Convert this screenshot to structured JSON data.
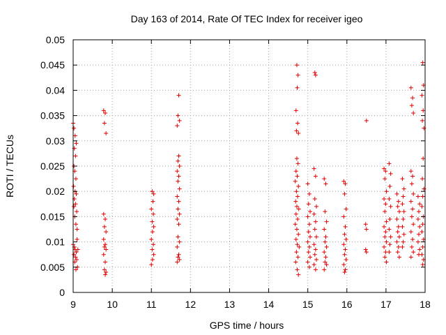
{
  "chart_data": {
    "type": "scatter",
    "title": "Day 163 of 2014, Rate Of TEC Index for receiver igeo",
    "xlabel": "GPS time / hours",
    "ylabel": "ROTI / TECUs",
    "xlim": [
      9,
      18
    ],
    "ylim": [
      0,
      0.05
    ],
    "xticks": [
      9,
      10,
      11,
      12,
      13,
      14,
      15,
      16,
      17,
      18
    ],
    "xtick_labels": [
      "9",
      "10",
      "11",
      "12",
      "13",
      "14",
      "15",
      "16",
      "17",
      "18"
    ],
    "yticks": [
      0,
      0.005,
      0.01,
      0.015,
      0.02,
      0.025,
      0.03,
      0.035,
      0.04,
      0.045,
      0.05
    ],
    "ytick_labels": [
      "0",
      "0.005",
      "0.01",
      "0.015",
      "0.02",
      "0.025",
      "0.03",
      "0.035",
      "0.04",
      "0.045",
      "0.05"
    ],
    "grid": true,
    "marker": "+",
    "color": "#e00000",
    "series": [
      {
        "name": "ROTI",
        "points": [
          [
            9.0,
            0.0335
          ],
          [
            9.02,
            0.0325
          ],
          [
            9.05,
            0.031
          ],
          [
            9.08,
            0.0295
          ],
          [
            9.03,
            0.0285
          ],
          [
            9.06,
            0.027
          ],
          [
            9.02,
            0.025
          ],
          [
            9.04,
            0.024
          ],
          [
            9.07,
            0.0225
          ],
          [
            9.01,
            0.021
          ],
          [
            9.05,
            0.02
          ],
          [
            9.08,
            0.0195
          ],
          [
            9.03,
            0.0185
          ],
          [
            9.06,
            0.0175
          ],
          [
            9.02,
            0.017
          ],
          [
            9.09,
            0.016
          ],
          [
            9.04,
            0.015
          ],
          [
            9.07,
            0.0135
          ],
          [
            9.1,
            0.0125
          ],
          [
            9.0,
            0.0095
          ],
          [
            9.03,
            0.009
          ],
          [
            9.05,
            0.0085
          ],
          [
            9.08,
            0.008
          ],
          [
            9.02,
            0.0075
          ],
          [
            9.06,
            0.007
          ],
          [
            9.09,
            0.0065
          ],
          [
            9.04,
            0.006
          ],
          [
            9.11,
            0.005
          ],
          [
            9.07,
            0.0045
          ],
          [
            9.12,
            0.0085
          ],
          [
            9.1,
            0.0105
          ],
          [
            9.78,
            0.036
          ],
          [
            9.82,
            0.0355
          ],
          [
            9.8,
            0.0335
          ],
          [
            9.84,
            0.0315
          ],
          [
            9.78,
            0.0155
          ],
          [
            9.82,
            0.0145
          ],
          [
            9.8,
            0.013
          ],
          [
            9.84,
            0.012
          ],
          [
            9.78,
            0.0105
          ],
          [
            9.82,
            0.0095
          ],
          [
            9.8,
            0.009
          ],
          [
            9.84,
            0.0085
          ],
          [
            9.78,
            0.0075
          ],
          [
            9.82,
            0.006
          ],
          [
            9.8,
            0.0045
          ],
          [
            9.84,
            0.004
          ],
          [
            9.82,
            0.0035
          ],
          [
            11.02,
            0.02
          ],
          [
            11.06,
            0.0195
          ],
          [
            11.04,
            0.018
          ],
          [
            11.0,
            0.0165
          ],
          [
            11.05,
            0.0155
          ],
          [
            11.02,
            0.014
          ],
          [
            11.06,
            0.013
          ],
          [
            11.03,
            0.012
          ],
          [
            11.0,
            0.0105
          ],
          [
            11.05,
            0.0095
          ],
          [
            11.02,
            0.0085
          ],
          [
            11.06,
            0.0075
          ],
          [
            11.03,
            0.0065
          ],
          [
            11.0,
            0.0055
          ],
          [
            11.7,
            0.039
          ],
          [
            11.68,
            0.035
          ],
          [
            11.72,
            0.034
          ],
          [
            11.66,
            0.033
          ],
          [
            11.7,
            0.027
          ],
          [
            11.68,
            0.026
          ],
          [
            11.72,
            0.025
          ],
          [
            11.66,
            0.024
          ],
          [
            11.7,
            0.023
          ],
          [
            11.68,
            0.022
          ],
          [
            11.72,
            0.0205
          ],
          [
            11.66,
            0.019
          ],
          [
            11.7,
            0.018
          ],
          [
            11.68,
            0.0165
          ],
          [
            11.72,
            0.0155
          ],
          [
            11.66,
            0.0145
          ],
          [
            11.7,
            0.0135
          ],
          [
            11.68,
            0.011
          ],
          [
            11.72,
            0.01
          ],
          [
            11.66,
            0.009
          ],
          [
            11.7,
            0.0075
          ],
          [
            11.68,
            0.007
          ],
          [
            11.72,
            0.0065
          ],
          [
            11.66,
            0.006
          ],
          [
            14.72,
            0.045
          ],
          [
            14.75,
            0.043
          ],
          [
            14.73,
            0.0405
          ],
          [
            14.7,
            0.036
          ],
          [
            14.74,
            0.0335
          ],
          [
            14.71,
            0.032
          ],
          [
            14.76,
            0.0315
          ],
          [
            14.72,
            0.0265
          ],
          [
            14.75,
            0.0255
          ],
          [
            14.7,
            0.024
          ],
          [
            14.73,
            0.023
          ],
          [
            14.68,
            0.022
          ],
          [
            14.76,
            0.021
          ],
          [
            14.71,
            0.02
          ],
          [
            14.74,
            0.019
          ],
          [
            14.69,
            0.018
          ],
          [
            14.72,
            0.017
          ],
          [
            14.77,
            0.0165
          ],
          [
            14.7,
            0.0155
          ],
          [
            14.74,
            0.0145
          ],
          [
            14.68,
            0.0135
          ],
          [
            14.72,
            0.0125
          ],
          [
            14.76,
            0.0115
          ],
          [
            14.7,
            0.0105
          ],
          [
            14.73,
            0.0095
          ],
          [
            14.78,
            0.009
          ],
          [
            14.71,
            0.008
          ],
          [
            14.75,
            0.007
          ],
          [
            14.69,
            0.006
          ],
          [
            14.73,
            0.0045
          ],
          [
            14.76,
            0.0035
          ],
          [
            15.0,
            0.0215
          ],
          [
            15.04,
            0.0195
          ],
          [
            15.02,
            0.0175
          ],
          [
            15.06,
            0.016
          ],
          [
            15.0,
            0.015
          ],
          [
            15.04,
            0.0135
          ],
          [
            15.02,
            0.012
          ],
          [
            15.06,
            0.011
          ],
          [
            15.0,
            0.01
          ],
          [
            15.04,
            0.009
          ],
          [
            15.02,
            0.008
          ],
          [
            15.06,
            0.007
          ],
          [
            15.0,
            0.006
          ],
          [
            15.04,
            0.005
          ],
          [
            15.18,
            0.0435
          ],
          [
            15.2,
            0.043
          ],
          [
            15.16,
            0.0245
          ],
          [
            15.2,
            0.023
          ],
          [
            15.18,
            0.0185
          ],
          [
            15.22,
            0.017
          ],
          [
            15.16,
            0.0155
          ],
          [
            15.2,
            0.014
          ],
          [
            15.18,
            0.0125
          ],
          [
            15.22,
            0.011
          ],
          [
            15.16,
            0.0095
          ],
          [
            15.2,
            0.0085
          ],
          [
            15.18,
            0.0075
          ],
          [
            15.22,
            0.0065
          ],
          [
            15.16,
            0.0055
          ],
          [
            15.2,
            0.0045
          ],
          [
            15.42,
            0.0225
          ],
          [
            15.46,
            0.0215
          ],
          [
            15.44,
            0.016
          ],
          [
            15.48,
            0.014
          ],
          [
            15.42,
            0.0125
          ],
          [
            15.46,
            0.011
          ],
          [
            15.44,
            0.01
          ],
          [
            15.48,
            0.009
          ],
          [
            15.42,
            0.008
          ],
          [
            15.46,
            0.007
          ],
          [
            15.44,
            0.006
          ],
          [
            15.48,
            0.0055
          ],
          [
            15.42,
            0.0045
          ],
          [
            15.92,
            0.022
          ],
          [
            15.96,
            0.0215
          ],
          [
            15.94,
            0.0195
          ],
          [
            15.98,
            0.0165
          ],
          [
            15.92,
            0.015
          ],
          [
            15.96,
            0.013
          ],
          [
            15.94,
            0.0115
          ],
          [
            15.98,
            0.0105
          ],
          [
            15.92,
            0.0095
          ],
          [
            15.96,
            0.0085
          ],
          [
            15.94,
            0.0075
          ],
          [
            15.98,
            0.0065
          ],
          [
            15.92,
            0.0055
          ],
          [
            15.96,
            0.0045
          ],
          [
            15.94,
            0.004
          ],
          [
            16.5,
            0.034
          ],
          [
            16.48,
            0.0135
          ],
          [
            16.5,
            0.0125
          ],
          [
            16.48,
            0.0085
          ],
          [
            16.5,
            0.008
          ],
          [
            16.95,
            0.0245
          ],
          [
            16.99,
            0.024
          ],
          [
            16.97,
            0.0225
          ],
          [
            17.01,
            0.02
          ],
          [
            16.95,
            0.0185
          ],
          [
            16.99,
            0.0175
          ],
          [
            16.97,
            0.016
          ],
          [
            17.01,
            0.014
          ],
          [
            16.95,
            0.013
          ],
          [
            16.99,
            0.012
          ],
          [
            16.97,
            0.011
          ],
          [
            17.01,
            0.01
          ],
          [
            16.95,
            0.009
          ],
          [
            16.99,
            0.008
          ],
          [
            16.97,
            0.007
          ],
          [
            17.01,
            0.006
          ],
          [
            17.08,
            0.0255
          ],
          [
            17.12,
            0.0235
          ],
          [
            17.1,
            0.021
          ],
          [
            17.08,
            0.0185
          ],
          [
            17.12,
            0.017
          ],
          [
            17.1,
            0.0145
          ],
          [
            17.08,
            0.0125
          ],
          [
            17.12,
            0.011
          ],
          [
            17.1,
            0.0095
          ],
          [
            17.08,
            0.008
          ],
          [
            17.28,
            0.0195
          ],
          [
            17.32,
            0.018
          ],
          [
            17.3,
            0.017
          ],
          [
            17.34,
            0.016
          ],
          [
            17.28,
            0.0145
          ],
          [
            17.32,
            0.013
          ],
          [
            17.3,
            0.012
          ],
          [
            17.34,
            0.011
          ],
          [
            17.28,
            0.01
          ],
          [
            17.32,
            0.009
          ],
          [
            17.3,
            0.008
          ],
          [
            17.34,
            0.007
          ],
          [
            17.42,
            0.0225
          ],
          [
            17.46,
            0.0205
          ],
          [
            17.44,
            0.019
          ],
          [
            17.42,
            0.0175
          ],
          [
            17.46,
            0.016
          ],
          [
            17.44,
            0.0145
          ],
          [
            17.42,
            0.013
          ],
          [
            17.46,
            0.0115
          ],
          [
            17.44,
            0.01
          ],
          [
            17.42,
            0.009
          ],
          [
            17.64,
            0.0405
          ],
          [
            17.68,
            0.0385
          ],
          [
            17.66,
            0.037
          ],
          [
            17.7,
            0.0355
          ],
          [
            17.64,
            0.024
          ],
          [
            17.68,
            0.023
          ],
          [
            17.66,
            0.0215
          ],
          [
            17.7,
            0.0195
          ],
          [
            17.64,
            0.018
          ],
          [
            17.68,
            0.0165
          ],
          [
            17.66,
            0.015
          ],
          [
            17.7,
            0.0135
          ],
          [
            17.64,
            0.012
          ],
          [
            17.68,
            0.0105
          ],
          [
            17.66,
            0.009
          ],
          [
            17.7,
            0.008
          ],
          [
            17.64,
            0.007
          ],
          [
            17.82,
            0.019
          ],
          [
            17.86,
            0.0175
          ],
          [
            17.84,
            0.016
          ],
          [
            17.82,
            0.0145
          ],
          [
            17.86,
            0.013
          ],
          [
            17.84,
            0.0115
          ],
          [
            17.82,
            0.01
          ],
          [
            17.86,
            0.0085
          ],
          [
            17.84,
            0.0075
          ],
          [
            17.94,
            0.0455
          ],
          [
            17.96,
            0.041
          ],
          [
            17.92,
            0.039
          ],
          [
            17.95,
            0.036
          ],
          [
            17.93,
            0.034
          ],
          [
            17.97,
            0.0325
          ],
          [
            17.95,
            0.0265
          ],
          [
            17.93,
            0.0225
          ],
          [
            17.97,
            0.0205
          ],
          [
            17.94,
            0.019
          ],
          [
            17.92,
            0.017
          ],
          [
            17.96,
            0.015
          ],
          [
            17.94,
            0.0135
          ],
          [
            17.92,
            0.012
          ],
          [
            17.96,
            0.0105
          ],
          [
            17.94,
            0.009
          ],
          [
            17.92,
            0.0075
          ],
          [
            17.96,
            0.0065
          ],
          [
            17.94,
            0.0055
          ]
        ]
      }
    ]
  }
}
